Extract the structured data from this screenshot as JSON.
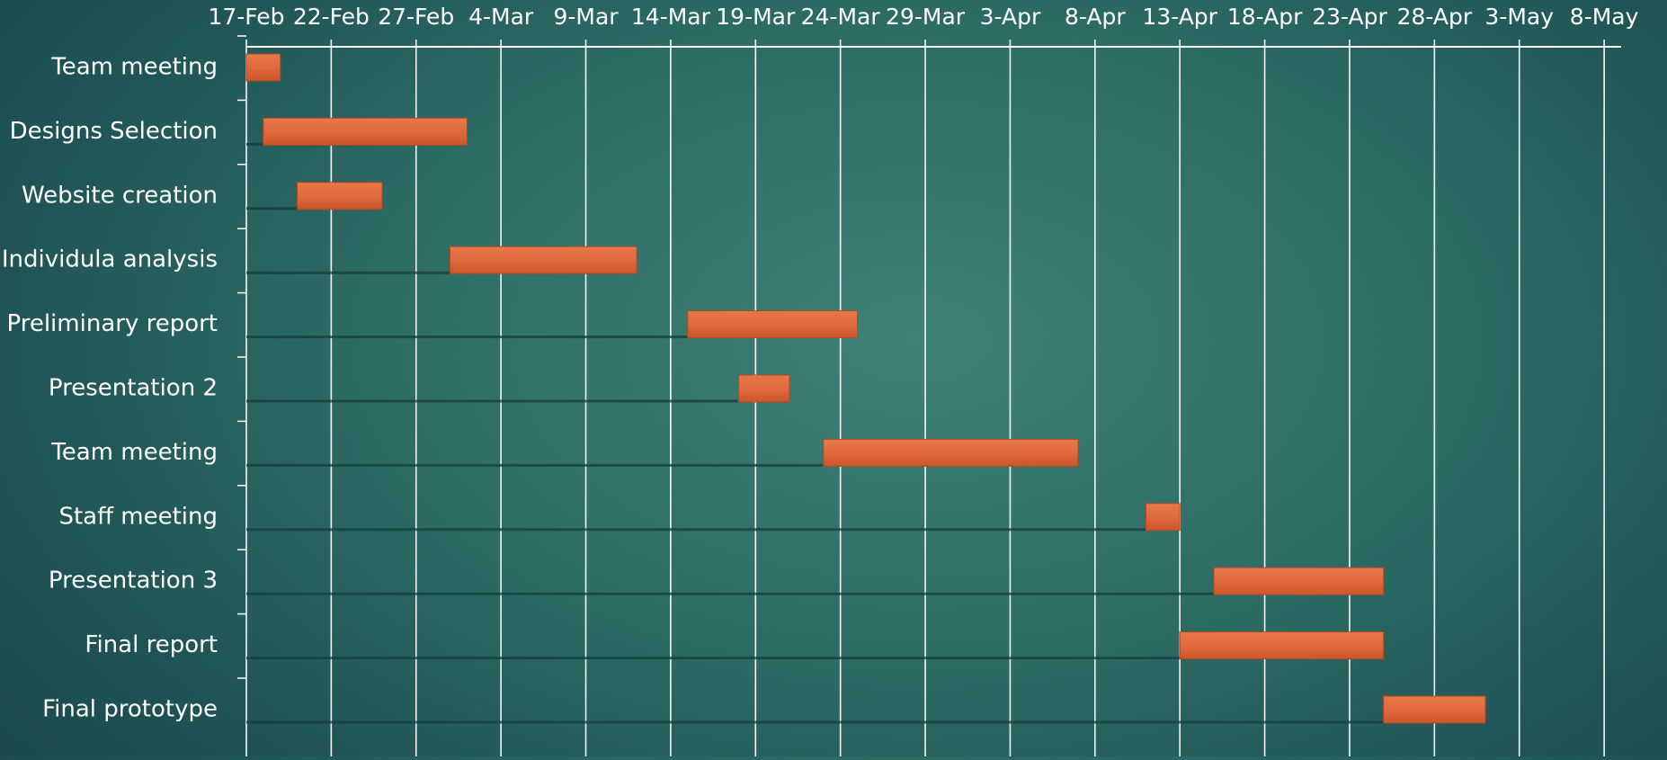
{
  "chart_data": {
    "type": "bar",
    "orientation": "horizontal",
    "variant": "gantt",
    "x_axis": {
      "position": "top",
      "start": "2024-02-17",
      "end": "2024-05-08",
      "tick_labels": [
        "17-Feb",
        "22-Feb",
        "27-Feb",
        "4-Mar",
        "9-Mar",
        "14-Mar",
        "19-Mar",
        "24-Mar",
        "29-Mar",
        "3-Apr",
        "8-Apr",
        "13-Apr",
        "18-Apr",
        "23-Apr",
        "28-Apr",
        "3-May",
        "8-May"
      ]
    },
    "grid": true,
    "tasks": [
      {
        "label": "Team meeting",
        "start": "2024-02-17",
        "end": "2024-02-19"
      },
      {
        "label": "Designs Selection",
        "start": "2024-02-18",
        "end": "2024-03-01"
      },
      {
        "label": "Website creation",
        "start": "2024-02-20",
        "end": "2024-02-25"
      },
      {
        "label": "Individula analysis",
        "start": "2024-02-29",
        "end": "2024-03-11"
      },
      {
        "label": "Preliminary report",
        "start": "2024-03-14",
        "end": "2024-03-24"
      },
      {
        "label": "Presentation 2",
        "start": "2024-03-17",
        "end": "2024-03-20"
      },
      {
        "label": "Team meeting",
        "start": "2024-03-22",
        "end": "2024-04-06"
      },
      {
        "label": "Staff meeting",
        "start": "2024-04-10",
        "end": "2024-04-12"
      },
      {
        "label": "Presentation 3",
        "start": "2024-04-14",
        "end": "2024-04-24"
      },
      {
        "label": "Final report",
        "start": "2024-04-12",
        "end": "2024-04-24"
      },
      {
        "label": "Final prototype",
        "start": "2024-04-24",
        "end": "2024-04-30"
      }
    ],
    "colors": {
      "bar": "#e0683a",
      "bar_edge": "#b24a22",
      "grid": "#ffffff",
      "text": "#ffffff"
    }
  }
}
